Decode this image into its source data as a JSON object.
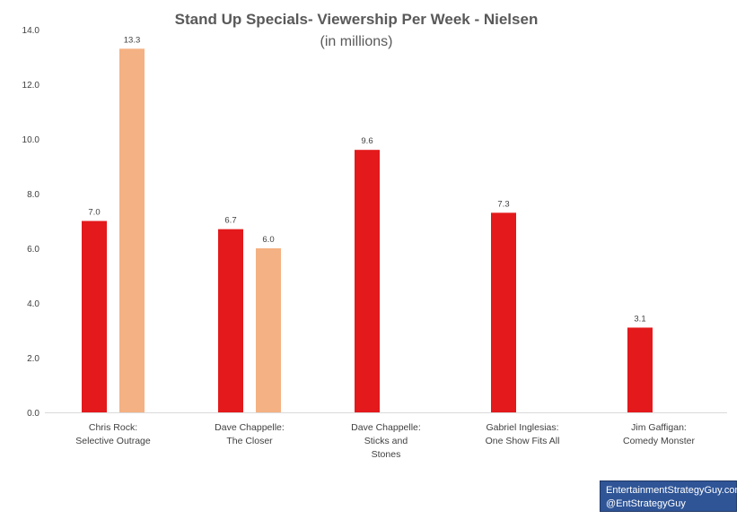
{
  "chart_data": {
    "type": "bar",
    "title": "Stand Up Specials- Viewership Per Week - Nielsen",
    "subtitle": "(in millions)",
    "categories": [
      [
        "Chris Rock:",
        "Selective Outrage"
      ],
      [
        "Dave Chappelle:",
        "The Closer"
      ],
      [
        "Dave Chappelle:",
        "Sticks and",
        "Stones"
      ],
      [
        "Gabriel Inglesias:",
        "One Show Fits All"
      ],
      [
        "Jim Gaffigan:",
        "Comedy Monster"
      ]
    ],
    "series": [
      {
        "color": "#e3191b",
        "values": [
          7.0,
          6.7,
          9.6,
          7.3,
          3.1
        ],
        "labels": [
          "7.0",
          "6.7",
          "9.6",
          "7.3",
          "3.1"
        ]
      },
      {
        "color": "#f4b183",
        "values": [
          13.3,
          6.0,
          null,
          null,
          null
        ],
        "labels": [
          "13.3",
          "6.0",
          "",
          "",
          ""
        ]
      }
    ],
    "ylim": [
      0,
      14
    ],
    "yticks": [
      "0.0",
      "2.0",
      "4.0",
      "6.0",
      "8.0",
      "10.0",
      "12.0",
      "14.0"
    ],
    "grid": false,
    "legend": "none"
  },
  "credit": {
    "line1": "EntertainmentStrategyGuy.com",
    "line2": "@EntStrategyGuy"
  }
}
